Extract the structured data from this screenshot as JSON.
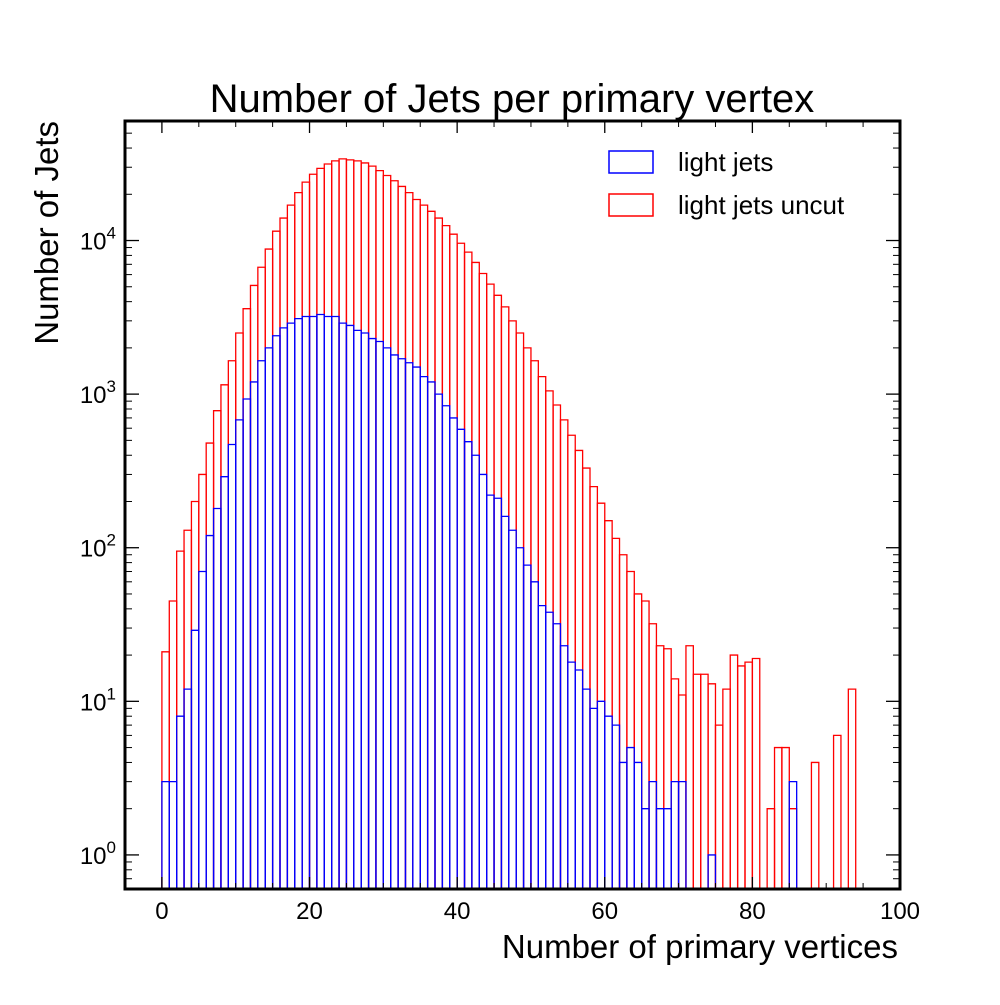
{
  "chart_data": {
    "type": "bar",
    "title": "Number of Jets per primary vertex",
    "xlabel": "Number of primary vertices",
    "ylabel": "Number of Jets",
    "xlim": [
      -5,
      100
    ],
    "ylim": [
      0.6,
      60000
    ],
    "yscale": "log",
    "grid": false,
    "legend_position": "top-right",
    "x_ticks": [
      "0",
      "20",
      "40",
      "60",
      "80",
      "100"
    ],
    "y_ticks": [
      {
        "base": "10",
        "exp": "0",
        "value": 1
      },
      {
        "base": "10",
        "exp": "1",
        "value": 10
      },
      {
        "base": "10",
        "exp": "2",
        "value": 100
      },
      {
        "base": "10",
        "exp": "3",
        "value": 1000
      },
      {
        "base": "10",
        "exp": "4",
        "value": 10000
      }
    ],
    "bin_edges_start": 0,
    "bin_width": 1,
    "series": [
      {
        "name": "light jets uncut",
        "color": "#ff0000",
        "values": [
          21,
          45,
          95,
          130,
          200,
          300,
          480,
          780,
          1150,
          1650,
          2500,
          3600,
          5100,
          6700,
          8800,
          11500,
          14000,
          17000,
          20500,
          24000,
          27000,
          29500,
          31500,
          33000,
          34000,
          33500,
          33000,
          32000,
          30500,
          28500,
          26500,
          24500,
          22500,
          20500,
          18500,
          17000,
          15500,
          14000,
          12500,
          11000,
          9600,
          8400,
          7200,
          6100,
          5200,
          4400,
          3700,
          3000,
          2500,
          2000,
          1650,
          1300,
          1050,
          850,
          680,
          540,
          430,
          330,
          250,
          195,
          150,
          115,
          90,
          70,
          50,
          45,
          32,
          23,
          22,
          14,
          11,
          23,
          15,
          15,
          13,
          7,
          12,
          20,
          17,
          18,
          19,
          0,
          2,
          5,
          5,
          2,
          0,
          0,
          4,
          0,
          0,
          6,
          0,
          12
        ],
        "values_note": ""
      },
      {
        "name": "light jets",
        "color": "#0000ff",
        "values": [
          3,
          3,
          8,
          12,
          29,
          70,
          120,
          180,
          290,
          470,
          680,
          930,
          1200,
          1650,
          2000,
          2400,
          2700,
          2900,
          3100,
          3200,
          3200,
          3300,
          3200,
          3200,
          2900,
          2800,
          2600,
          2500,
          2300,
          2200,
          2000,
          1800,
          1700,
          1600,
          1500,
          1300,
          1200,
          1000,
          840,
          700,
          590,
          490,
          400,
          300,
          220,
          210,
          160,
          130,
          100,
          77,
          60,
          42,
          38,
          32,
          23,
          18,
          16,
          12,
          9,
          10,
          8,
          7,
          4,
          5,
          4,
          2,
          3,
          2,
          2,
          3,
          3,
          0,
          0,
          0,
          1,
          0,
          0,
          0,
          0,
          0,
          0,
          0,
          0,
          0,
          0,
          3
        ],
        "values_note": ""
      }
    ]
  }
}
